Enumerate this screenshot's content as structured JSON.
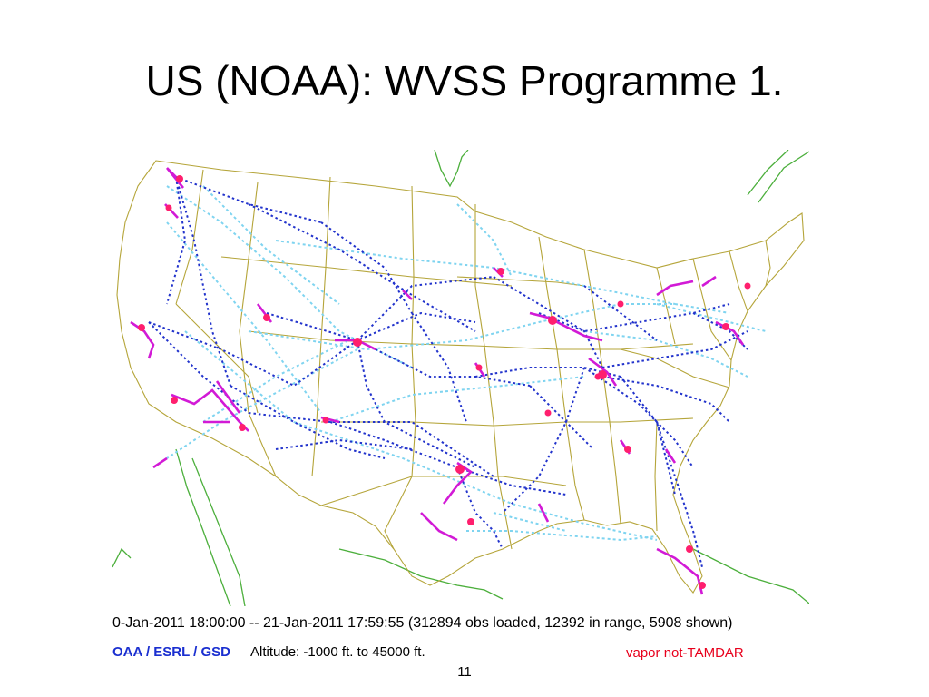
{
  "slide": {
    "title": "US (NOAA): WVSS Programme 1.",
    "page_number": "11"
  },
  "map": {
    "caption": "0-Jan-2011 18:00:00 -- 21-Jan-2011 17:59:55 (312894 obs loaded, 12392 in range, 5908 shown)",
    "org_label": "OAA / ESRL / GSD",
    "altitude_label": "Altitude: -1000 ft. to 45000 ft.",
    "legend_label": "vapor not-TAMDAR",
    "colors": {
      "state_borders": "#b5a53a",
      "coastline_other": "#4caf3c",
      "track_high": "#2233cc",
      "track_low": "#7fd4f0",
      "track_descent": "#d21ad6",
      "airport_hub": "#ff1f6e"
    }
  }
}
